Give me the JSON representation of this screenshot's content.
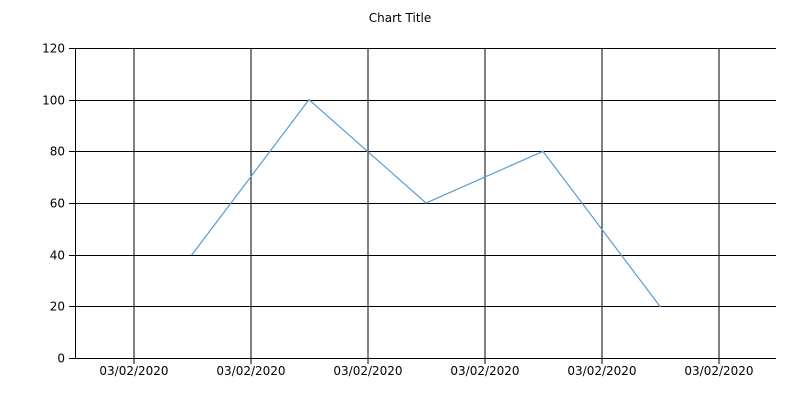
{
  "chart_data": {
    "type": "line",
    "title": "Chart Title",
    "xlabel": "",
    "ylabel": "",
    "ylim": [
      0,
      120
    ],
    "y_ticks": [
      0,
      20,
      40,
      60,
      80,
      100,
      120
    ],
    "x_tick_labels": [
      "03/02/2020",
      "03/02/2020",
      "03/02/2020",
      "03/02/2020",
      "03/02/2020",
      "03/02/2020"
    ],
    "grid": true,
    "legend": "none",
    "series": [
      {
        "values": [
          40,
          100,
          60,
          80,
          20
        ],
        "color": "#5b9bd5"
      }
    ]
  }
}
